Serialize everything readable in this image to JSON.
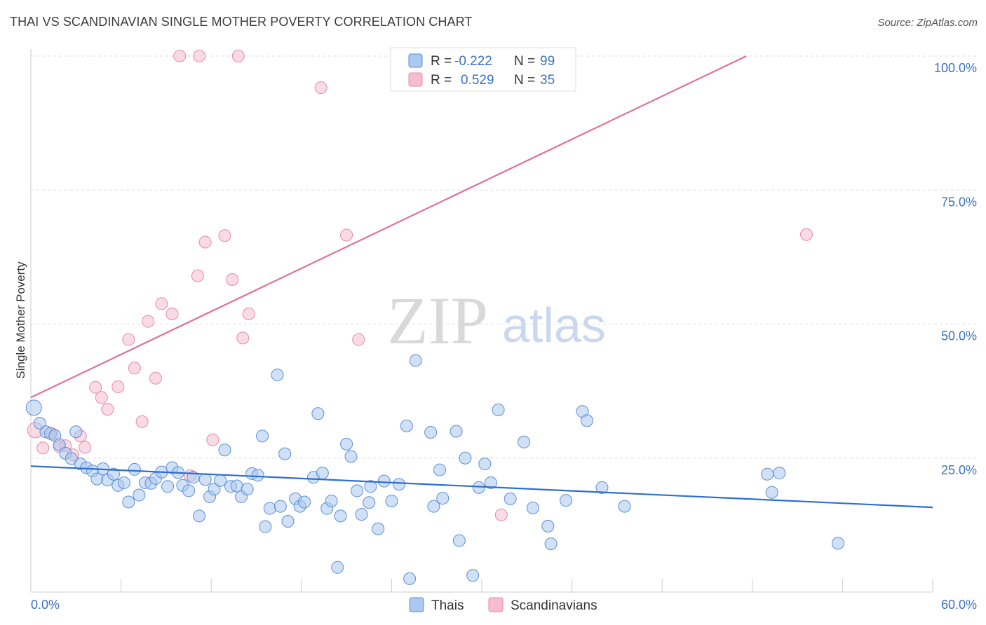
{
  "title": "THAI VS SCANDINAVIAN SINGLE MOTHER POVERTY CORRELATION CHART",
  "source": "Source: ZipAtlas.com",
  "watermark": {
    "zip": "ZIP",
    "atlas": "atlas"
  },
  "colors": {
    "thais_fill": "#aac8f0",
    "thais_stroke": "#5b8fd6",
    "thais_line": "#2d6fcf",
    "scand_fill": "#f6bdd0",
    "scand_stroke": "#e58aa8",
    "scand_line": "#e07099",
    "axis_text": "#3a72c4",
    "grid": "#dddddd"
  },
  "legend": {
    "thais": {
      "r_label": "R =",
      "r_value": "-0.222",
      "n_label": "N =",
      "n_value": "99"
    },
    "scand": {
      "r_label": "R =",
      "r_value": "0.529",
      "n_label": "N =",
      "n_value": "35"
    }
  },
  "bottom_legend": {
    "thais": "Thais",
    "scand": "Scandinavians"
  },
  "chart_data": {
    "type": "scatter",
    "title": "THAI VS SCANDINAVIAN SINGLE MOTHER POVERTY CORRELATION CHART",
    "xlabel": "",
    "ylabel": "Single Mother Poverty",
    "xlim": [
      0,
      60
    ],
    "ylim": [
      0,
      100
    ],
    "x_tick_labels": [
      "0.0%",
      "60.0%"
    ],
    "y_ticks": [
      25,
      50,
      75,
      100
    ],
    "y_tick_labels": [
      "25.0%",
      "50.0%",
      "75.0%",
      "100.0%"
    ],
    "grid": true,
    "legend_position": "top-center",
    "series": [
      {
        "name": "Thais",
        "R": -0.222,
        "N": 99,
        "trend": {
          "x": [
            0,
            60
          ],
          "y": [
            23.5,
            15.8
          ]
        },
        "points": [
          [
            0.2,
            34.4
          ],
          [
            0.6,
            31.5
          ],
          [
            1.0,
            29.9
          ],
          [
            1.3,
            29.6
          ],
          [
            1.6,
            29.2
          ],
          [
            1.9,
            27.5
          ],
          [
            2.3,
            25.9
          ],
          [
            2.7,
            24.9
          ],
          [
            3.0,
            29.9
          ],
          [
            3.3,
            23.9
          ],
          [
            3.7,
            23.2
          ],
          [
            4.1,
            22.6
          ],
          [
            4.4,
            21.1
          ],
          [
            4.8,
            23.0
          ],
          [
            5.1,
            20.9
          ],
          [
            5.5,
            22.0
          ],
          [
            5.8,
            19.9
          ],
          [
            6.2,
            20.4
          ],
          [
            6.5,
            16.8
          ],
          [
            6.9,
            22.9
          ],
          [
            7.2,
            18.1
          ],
          [
            7.6,
            20.4
          ],
          [
            8.0,
            20.3
          ],
          [
            8.3,
            21.2
          ],
          [
            8.7,
            22.4
          ],
          [
            9.1,
            19.7
          ],
          [
            9.4,
            23.2
          ],
          [
            9.8,
            22.3
          ],
          [
            10.1,
            19.9
          ],
          [
            10.5,
            18.9
          ],
          [
            10.8,
            21.4
          ],
          [
            11.2,
            14.2
          ],
          [
            11.6,
            21.0
          ],
          [
            11.9,
            17.8
          ],
          [
            12.2,
            19.2
          ],
          [
            12.6,
            20.8
          ],
          [
            12.9,
            26.5
          ],
          [
            13.3,
            19.7
          ],
          [
            13.7,
            19.8
          ],
          [
            14.0,
            17.8
          ],
          [
            14.4,
            19.2
          ],
          [
            14.7,
            22.1
          ],
          [
            15.1,
            21.8
          ],
          [
            15.4,
            29.1
          ],
          [
            15.6,
            12.2
          ],
          [
            15.9,
            15.6
          ],
          [
            16.4,
            40.5
          ],
          [
            16.6,
            16.0
          ],
          [
            16.9,
            25.8
          ],
          [
            17.1,
            13.2
          ],
          [
            17.6,
            17.4
          ],
          [
            17.9,
            16.0
          ],
          [
            18.2,
            16.8
          ],
          [
            18.8,
            21.4
          ],
          [
            19.1,
            33.3
          ],
          [
            19.4,
            22.2
          ],
          [
            19.7,
            15.6
          ],
          [
            20.0,
            17.0
          ],
          [
            20.4,
            4.6
          ],
          [
            20.6,
            14.2
          ],
          [
            21.0,
            27.6
          ],
          [
            21.3,
            25.3
          ],
          [
            21.7,
            18.9
          ],
          [
            22.0,
            14.5
          ],
          [
            22.5,
            16.7
          ],
          [
            22.6,
            19.7
          ],
          [
            23.1,
            11.8
          ],
          [
            23.5,
            20.7
          ],
          [
            24.0,
            17.0
          ],
          [
            24.5,
            20.1
          ],
          [
            25.0,
            31.0
          ],
          [
            25.2,
            2.5
          ],
          [
            25.6,
            43.2
          ],
          [
            26.6,
            29.8
          ],
          [
            26.8,
            16.0
          ],
          [
            27.2,
            22.8
          ],
          [
            27.4,
            17.5
          ],
          [
            28.3,
            30.0
          ],
          [
            28.5,
            9.6
          ],
          [
            28.9,
            25.0
          ],
          [
            29.4,
            3.1
          ],
          [
            29.8,
            19.5
          ],
          [
            30.2,
            23.9
          ],
          [
            30.6,
            20.4
          ],
          [
            31.1,
            34.0
          ],
          [
            31.9,
            17.4
          ],
          [
            32.8,
            28.0
          ],
          [
            33.4,
            15.7
          ],
          [
            34.4,
            12.3
          ],
          [
            34.6,
            9.0
          ],
          [
            35.6,
            17.1
          ],
          [
            36.7,
            33.7
          ],
          [
            37.0,
            32.0
          ],
          [
            38.0,
            19.5
          ],
          [
            39.5,
            16.0
          ],
          [
            49.0,
            22.0
          ],
          [
            49.3,
            18.6
          ],
          [
            49.8,
            22.2
          ],
          [
            53.7,
            9.1
          ]
        ]
      },
      {
        "name": "Scandinavians",
        "R": 0.529,
        "N": 35,
        "trend": {
          "x": [
            0,
            47.6
          ],
          "y": [
            36.3,
            100
          ]
        },
        "points": [
          [
            0.3,
            30.2
          ],
          [
            0.8,
            26.9
          ],
          [
            1.4,
            29.5
          ],
          [
            1.9,
            27.1
          ],
          [
            2.3,
            27.3
          ],
          [
            2.8,
            25.6
          ],
          [
            3.3,
            29.1
          ],
          [
            3.6,
            27.0
          ],
          [
            4.3,
            38.2
          ],
          [
            4.7,
            36.3
          ],
          [
            5.1,
            34.1
          ],
          [
            5.8,
            38.3
          ],
          [
            6.5,
            47.1
          ],
          [
            6.9,
            41.8
          ],
          [
            7.4,
            31.8
          ],
          [
            7.8,
            50.5
          ],
          [
            8.3,
            39.9
          ],
          [
            8.7,
            53.8
          ],
          [
            9.4,
            51.9
          ],
          [
            9.9,
            100.0
          ],
          [
            10.6,
            21.7
          ],
          [
            11.1,
            59.0
          ],
          [
            11.2,
            100.0
          ],
          [
            11.6,
            65.3
          ],
          [
            12.1,
            28.4
          ],
          [
            12.9,
            66.5
          ],
          [
            13.4,
            58.3
          ],
          [
            13.8,
            100.0
          ],
          [
            14.1,
            47.4
          ],
          [
            14.5,
            51.9
          ],
          [
            19.3,
            94.1
          ],
          [
            21.0,
            66.6
          ],
          [
            21.8,
            47.1
          ],
          [
            31.3,
            14.4
          ],
          [
            51.6,
            66.7
          ]
        ]
      }
    ]
  }
}
